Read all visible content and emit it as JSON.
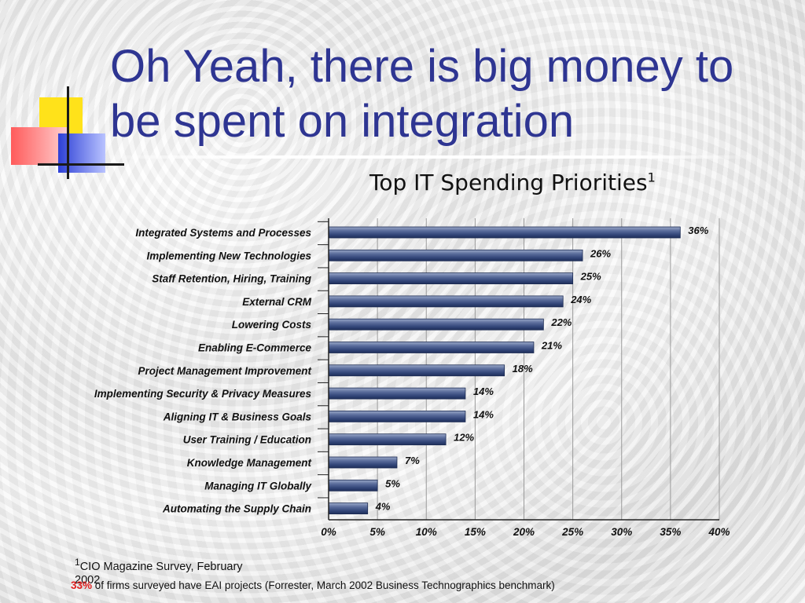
{
  "slide": {
    "title": "Oh Yeah, there is big money to be spent on integration",
    "footnote_mark": "1",
    "footnote_text": "CIO Magazine Survey, February 2002",
    "bottom_highlight": "33%",
    "bottom_text": " of  firms surveyed have EAI projects (Forrester, March 2002 Business Technographics benchmark)"
  },
  "colors": {
    "title": "#2e3592",
    "bar": "#3c4f82",
    "highlight": "#e02020"
  },
  "chart_data": {
    "type": "bar",
    "orientation": "horizontal",
    "title": "Top IT Spending Priorities",
    "title_superscript": "1",
    "categories": [
      "Integrated Systems and Processes",
      "Implementing New Technologies",
      "Staff Retention, Hiring, Training",
      "External CRM",
      "Lowering Costs",
      "Enabling E-Commerce",
      "Project Management Improvement",
      "Implementing Security & Privacy Measures",
      "Aligning IT & Business Goals",
      "User Training / Education",
      "Knowledge Management",
      "Managing IT Globally",
      "Automating the Supply Chain"
    ],
    "values": [
      36,
      26,
      25,
      24,
      22,
      21,
      18,
      14,
      14,
      12,
      7,
      5,
      4
    ],
    "value_labels": [
      "36%",
      "26%",
      "25%",
      "24%",
      "22%",
      "21%",
      "18%",
      "14%",
      "14%",
      "12%",
      "7%",
      "5%",
      "4%"
    ],
    "x_ticks": [
      "0%",
      "5%",
      "10%",
      "15%",
      "20%",
      "25%",
      "30%",
      "35%",
      "40%"
    ],
    "xlim": [
      0,
      40
    ],
    "grid": true
  }
}
